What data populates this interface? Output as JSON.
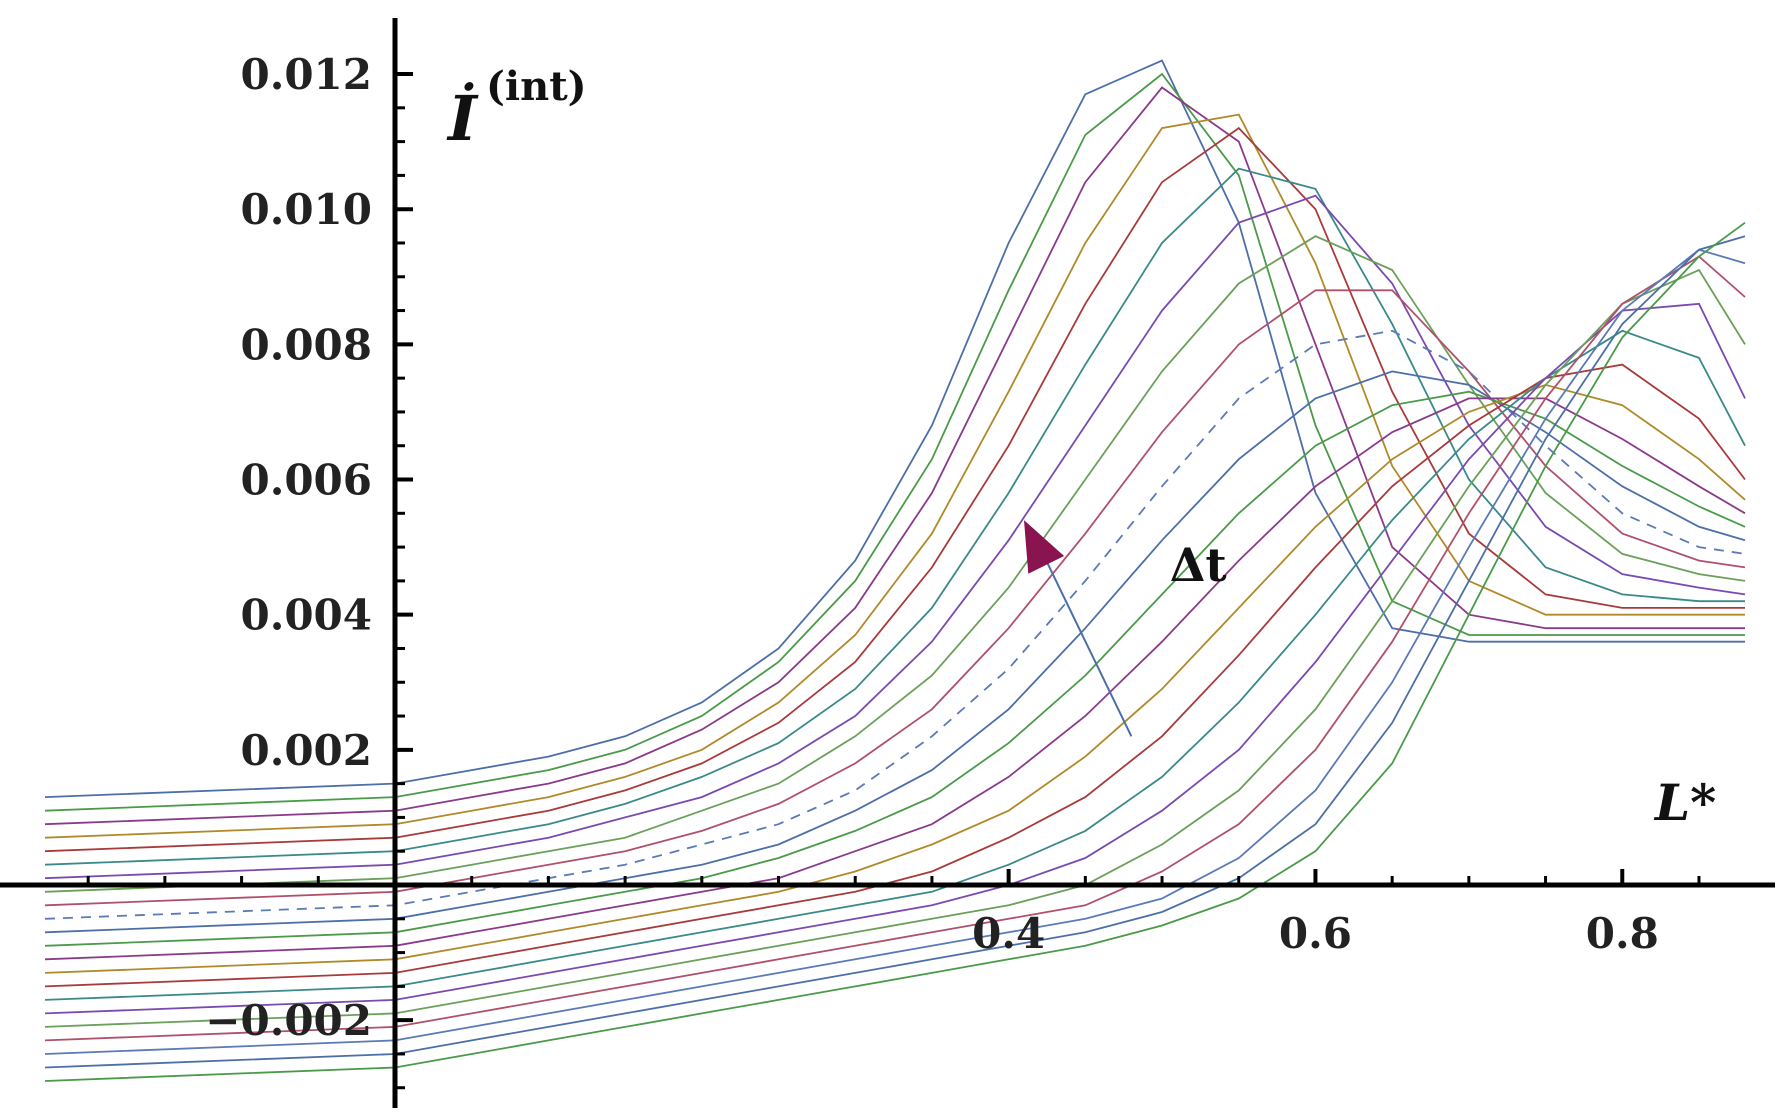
{
  "chart_data": {
    "type": "line",
    "title": "",
    "xlabel": "L*",
    "ylabel_main": "İ",
    "ylabel_sup": "(int)",
    "xlim": [
      0.0,
      0.88
    ],
    "ylim": [
      -0.0032,
      0.0128
    ],
    "grid": false,
    "legend": "none",
    "x_ticks": [
      {
        "value": 0.4,
        "label": "0.4"
      },
      {
        "value": 0.6,
        "label": "0.6"
      },
      {
        "value": 0.8,
        "label": "0.8"
      }
    ],
    "x_minor_ticks": [
      0.05,
      0.1,
      0.15,
      0.2,
      0.25,
      0.3,
      0.35,
      0.45,
      0.5,
      0.55,
      0.65,
      0.7,
      0.75,
      0.85
    ],
    "y_ticks": [
      {
        "value": -0.002,
        "label": "−0.002"
      },
      {
        "value": 0.002,
        "label": "0.002"
      },
      {
        "value": 0.004,
        "label": "0.004"
      },
      {
        "value": 0.006,
        "label": "0.006"
      },
      {
        "value": 0.008,
        "label": "0.008"
      },
      {
        "value": 0.01,
        "label": "0.010"
      },
      {
        "value": 0.012,
        "label": "0.012"
      }
    ],
    "annotation": {
      "text": "Δt",
      "arrow_from": [
        0.48,
        0.0022
      ],
      "arrow_to": [
        0.41,
        0.0054
      ],
      "text_at": [
        0.505,
        0.0045
      ],
      "color": "#8a1450"
    },
    "series_colors": [
      "#4c6fa8",
      "#4a9a4a",
      "#8a3a8a",
      "#b08a2a",
      "#a83a3a",
      "#3a8a8a",
      "#7a4ab0",
      "#6aa05a",
      "#b0506a",
      "#5a7ab8"
    ],
    "x": [
      0.0,
      0.05,
      0.1,
      0.15,
      0.2,
      0.25,
      0.3,
      0.35,
      0.4,
      0.45,
      0.5,
      0.55,
      0.6,
      0.65,
      0.7,
      0.75,
      0.8,
      0.85,
      0.88
    ],
    "series": [
      {
        "values": [
          0.0015,
          0.0017,
          0.0019,
          0.0022,
          0.0027,
          0.0035,
          0.0048,
          0.0068,
          0.0095,
          0.0117,
          0.0122,
          0.0098,
          0.0058,
          0.0038,
          0.0036,
          0.0036,
          0.0036,
          0.0036,
          0.0036
        ]
      },
      {
        "values": [
          0.0013,
          0.0015,
          0.0017,
          0.002,
          0.0025,
          0.0033,
          0.0045,
          0.0063,
          0.0088,
          0.0111,
          0.012,
          0.0105,
          0.0068,
          0.0042,
          0.0037,
          0.0037,
          0.0037,
          0.0037,
          0.0037
        ]
      },
      {
        "values": [
          0.0011,
          0.0013,
          0.0015,
          0.0018,
          0.0023,
          0.003,
          0.0041,
          0.0058,
          0.0081,
          0.0104,
          0.0118,
          0.011,
          0.008,
          0.005,
          0.004,
          0.0038,
          0.0038,
          0.0038,
          0.0038
        ]
      },
      {
        "values": [
          0.0009,
          0.0011,
          0.0013,
          0.0016,
          0.002,
          0.0027,
          0.0037,
          0.0052,
          0.0073,
          0.0095,
          0.0112,
          0.0114,
          0.0092,
          0.0062,
          0.0045,
          0.004,
          0.004,
          0.004,
          0.004
        ]
      },
      {
        "values": [
          0.0007,
          0.0009,
          0.0011,
          0.0014,
          0.0018,
          0.0024,
          0.0033,
          0.0047,
          0.0065,
          0.0086,
          0.0104,
          0.0112,
          0.01,
          0.0073,
          0.0052,
          0.0043,
          0.0041,
          0.0041,
          0.0041
        ]
      },
      {
        "values": [
          0.0005,
          0.0007,
          0.0009,
          0.0012,
          0.0016,
          0.0021,
          0.0029,
          0.0041,
          0.0058,
          0.0077,
          0.0095,
          0.0106,
          0.0103,
          0.0083,
          0.006,
          0.0047,
          0.0043,
          0.0042,
          0.0042
        ]
      },
      {
        "values": [
          0.0003,
          0.0005,
          0.0007,
          0.001,
          0.0013,
          0.0018,
          0.0025,
          0.0036,
          0.0051,
          0.0068,
          0.0085,
          0.0098,
          0.0102,
          0.0089,
          0.0068,
          0.0053,
          0.0046,
          0.0044,
          0.0043
        ]
      },
      {
        "values": [
          0.0001,
          0.0003,
          0.0005,
          0.0007,
          0.0011,
          0.0015,
          0.0022,
          0.0031,
          0.0044,
          0.006,
          0.0076,
          0.0089,
          0.0096,
          0.0091,
          0.0074,
          0.0058,
          0.0049,
          0.0046,
          0.0045
        ]
      },
      {
        "values": [
          -0.0001,
          0.0001,
          0.0003,
          0.0005,
          0.0008,
          0.0012,
          0.0018,
          0.0026,
          0.0038,
          0.0052,
          0.0067,
          0.008,
          0.0088,
          0.0088,
          0.0076,
          0.0062,
          0.0052,
          0.0048,
          0.0047
        ]
      },
      {
        "values": [
          -0.0003,
          -0.0001,
          0.0001,
          0.0003,
          0.0006,
          0.0009,
          0.0014,
          0.0022,
          0.0032,
          0.0045,
          0.0059,
          0.0072,
          0.008,
          0.0082,
          0.0076,
          0.0065,
          0.0055,
          0.005,
          0.0049
        ]
      },
      {
        "values": [
          -0.0005,
          -0.0003,
          -0.0001,
          0.0001,
          0.0003,
          0.0006,
          0.0011,
          0.0017,
          0.0026,
          0.0038,
          0.0051,
          0.0063,
          0.0072,
          0.0076,
          0.0074,
          0.0067,
          0.0059,
          0.0053,
          0.0051
        ]
      },
      {
        "values": [
          -0.0007,
          -0.0005,
          -0.0003,
          -0.0001,
          0.0001,
          0.0004,
          0.0008,
          0.0013,
          0.0021,
          0.0031,
          0.0043,
          0.0055,
          0.0065,
          0.0071,
          0.0073,
          0.0069,
          0.0062,
          0.0056,
          0.0053
        ]
      },
      {
        "values": [
          -0.0009,
          -0.0007,
          -0.0005,
          -0.0003,
          -0.0001,
          0.0001,
          0.0005,
          0.0009,
          0.0016,
          0.0025,
          0.0036,
          0.0048,
          0.0059,
          0.0067,
          0.0072,
          0.0072,
          0.0066,
          0.0059,
          0.0055
        ]
      },
      {
        "values": [
          -0.0011,
          -0.0009,
          -0.0007,
          -0.0005,
          -0.0003,
          -0.0001,
          0.0002,
          0.0006,
          0.0011,
          0.0019,
          0.0029,
          0.0041,
          0.0053,
          0.0063,
          0.007,
          0.0074,
          0.0071,
          0.0063,
          0.0057
        ]
      },
      {
        "values": [
          -0.0013,
          -0.0011,
          -0.0009,
          -0.0007,
          -0.0005,
          -0.0003,
          -0.0001,
          0.0002,
          0.0007,
          0.0013,
          0.0022,
          0.0034,
          0.0047,
          0.0059,
          0.0068,
          0.0075,
          0.0077,
          0.0069,
          0.006
        ]
      },
      {
        "values": [
          -0.0015,
          -0.0013,
          -0.0011,
          -0.0009,
          -0.0007,
          -0.0005,
          -0.0003,
          -0.0001,
          0.0003,
          0.0008,
          0.0016,
          0.0027,
          0.004,
          0.0054,
          0.0066,
          0.0075,
          0.0082,
          0.0078,
          0.0065
        ]
      },
      {
        "values": [
          -0.0017,
          -0.0015,
          -0.0013,
          -0.0011,
          -0.0009,
          -0.0007,
          -0.0005,
          -0.0003,
          0.0,
          0.0004,
          0.0011,
          0.002,
          0.0033,
          0.0048,
          0.0063,
          0.0075,
          0.0085,
          0.0086,
          0.0072
        ]
      },
      {
        "values": [
          -0.0019,
          -0.0017,
          -0.0015,
          -0.0013,
          -0.0011,
          -0.0009,
          -0.0007,
          -0.0005,
          -0.0003,
          0.0,
          0.0006,
          0.0014,
          0.0026,
          0.0042,
          0.0059,
          0.0074,
          0.0086,
          0.0091,
          0.008
        ]
      },
      {
        "values": [
          -0.0021,
          -0.0019,
          -0.0017,
          -0.0015,
          -0.0013,
          -0.0011,
          -0.0009,
          -0.0007,
          -0.0005,
          -0.0003,
          0.0002,
          0.0009,
          0.002,
          0.0036,
          0.0055,
          0.0072,
          0.0086,
          0.0093,
          0.0087
        ]
      },
      {
        "values": [
          -0.0023,
          -0.0021,
          -0.0019,
          -0.0017,
          -0.0015,
          -0.0013,
          -0.0011,
          -0.0009,
          -0.0007,
          -0.0005,
          -0.0002,
          0.0004,
          0.0014,
          0.003,
          0.005,
          0.0069,
          0.0085,
          0.0094,
          0.0092
        ]
      },
      {
        "values": [
          -0.0025,
          -0.0023,
          -0.0021,
          -0.0019,
          -0.0017,
          -0.0015,
          -0.0013,
          -0.0011,
          -0.0009,
          -0.0007,
          -0.0004,
          0.0001,
          0.0009,
          0.0024,
          0.0045,
          0.0066,
          0.0083,
          0.0094,
          0.0096
        ]
      },
      {
        "values": [
          -0.0027,
          -0.0025,
          -0.0023,
          -0.0021,
          -0.0019,
          -0.0017,
          -0.0015,
          -0.0013,
          -0.0011,
          -0.0009,
          -0.0006,
          -0.0002,
          0.0005,
          0.0018,
          0.004,
          0.0062,
          0.0081,
          0.0093,
          0.0098
        ]
      }
    ]
  }
}
